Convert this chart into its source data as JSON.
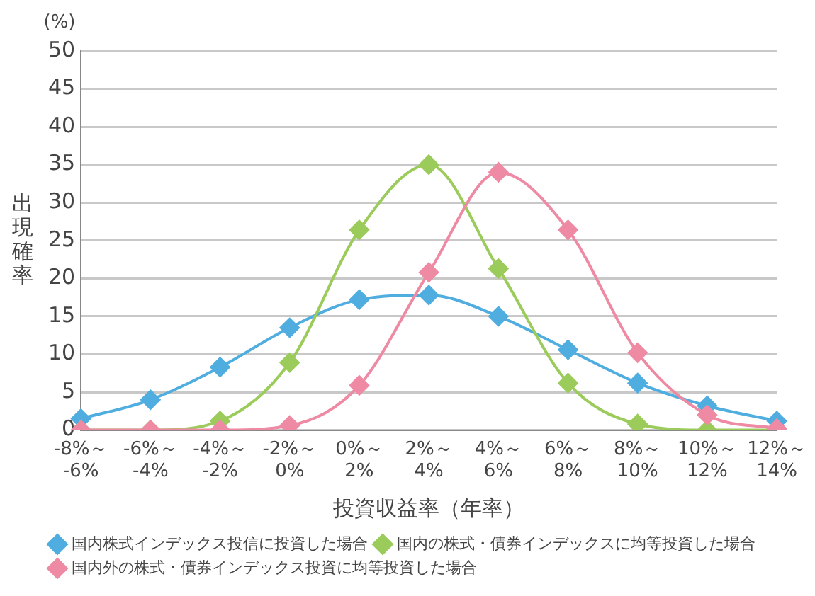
{
  "chart_data": {
    "type": "line",
    "xlabel": "投資収益率（年率）",
    "ylabel": "出現確率",
    "annotations": [
      "(%)"
    ],
    "categories": [
      "-8%～\n-6%",
      "-6%～\n-4%",
      "-4%～\n-2%",
      "-2%～\n0%",
      "0%～\n2%",
      "2%～\n4%",
      "4%～\n6%",
      "6%～\n8%",
      "8%～\n10%",
      "10%～\n12%",
      "12%～\n14%"
    ],
    "series": [
      {
        "name": "国内株式インデックス投信に投資した場合",
        "color": "#4fade0",
        "values": [
          1.5,
          4,
          8.3,
          13.5,
          17.2,
          17.8,
          15,
          10.6,
          6.2,
          3.2,
          1.2
        ]
      },
      {
        "name": "国内の株式・債券インデックスに均等投資した場合",
        "color": "#9bcb5a",
        "values": [
          0,
          0,
          1.2,
          8.9,
          26.4,
          35,
          21.3,
          6.2,
          0.8,
          0,
          0
        ]
      },
      {
        "name": "国内外の株式・債券インデックス投資に均等投資した場合",
        "color": "#ee8aa3",
        "values": [
          0,
          0,
          0,
          0.6,
          5.9,
          20.8,
          34,
          26.4,
          10.2,
          2,
          0.2
        ]
      }
    ],
    "ylim": [
      0,
      50
    ],
    "yticks": [
      0,
      5,
      10,
      15,
      20,
      25,
      30,
      35,
      40,
      45,
      50
    ],
    "grid": "y",
    "legend": "bottom",
    "marker": "diamond",
    "line_style": "solid"
  }
}
